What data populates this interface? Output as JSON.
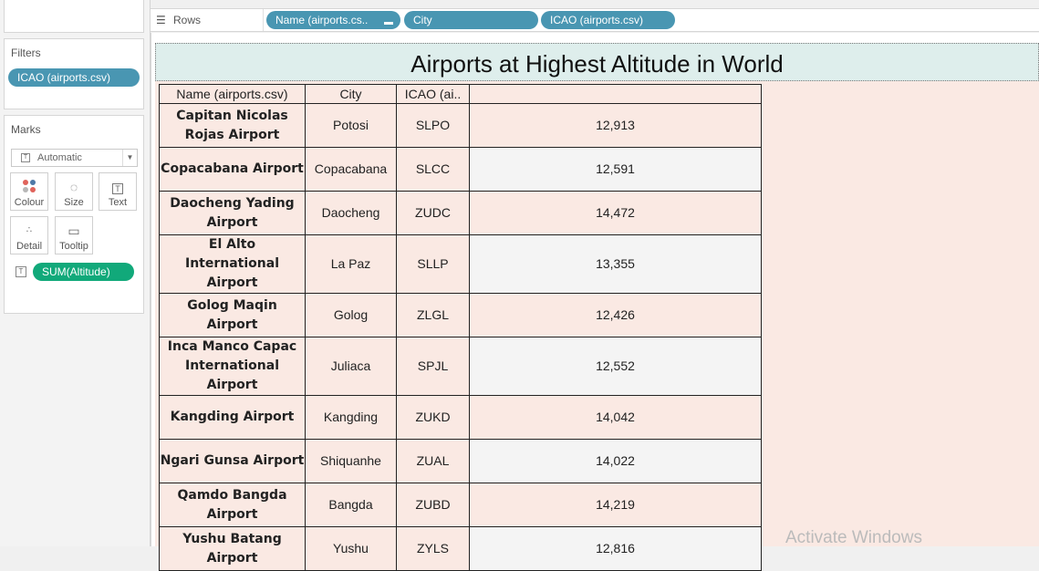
{
  "shelf": {
    "rows_label": "Rows",
    "pills": [
      "Name (airports.cs..",
      "City",
      "ICAO (airports.csv)"
    ]
  },
  "filters": {
    "title": "Filters",
    "pill": "ICAO (airports.csv)"
  },
  "marks": {
    "title": "Marks",
    "mark_type": "Automatic",
    "buttons": [
      "Colour",
      "Size",
      "Text",
      "Detail",
      "Tooltip"
    ],
    "measure_pill": "SUM(Altitude)"
  },
  "view": {
    "title": "Airports at Highest Altitude in World",
    "columns": [
      "Name (airports.csv)",
      "City",
      "ICAO (ai..",
      ""
    ],
    "rows": [
      {
        "name": "Capitan Nicolas Rojas Airport",
        "city": "Potosi",
        "icao": "SLPO",
        "altitude": "12,913"
      },
      {
        "name": "Copacabana Airport",
        "city": "Copacabana",
        "icao": "SLCC",
        "altitude": "12,591"
      },
      {
        "name": "Daocheng Yading Airport",
        "city": "Daocheng",
        "icao": "ZUDC",
        "altitude": "14,472"
      },
      {
        "name": "El Alto International Airport",
        "city": "La Paz",
        "icao": "SLLP",
        "altitude": "13,355"
      },
      {
        "name": "Golog Maqin Airport",
        "city": "Golog",
        "icao": "ZLGL",
        "altitude": "12,426"
      },
      {
        "name": "Inca Manco Capac International Airport",
        "city": "Juliaca",
        "icao": "SPJL",
        "altitude": "12,552"
      },
      {
        "name": "Kangding Airport",
        "city": "Kangding",
        "icao": "ZUKD",
        "altitude": "14,042"
      },
      {
        "name": "Ngari Gunsa Airport",
        "city": "Shiquanhe",
        "icao": "ZUAL",
        "altitude": "14,022"
      },
      {
        "name": "Qamdo Bangda Airport",
        "city": "Bangda",
        "icao": "ZUBD",
        "altitude": "14,219"
      },
      {
        "name": "Yushu Batang Airport",
        "city": "Yushu",
        "icao": "ZYLS",
        "altitude": "12,816"
      }
    ]
  },
  "watermark": "Activate Windows",
  "colors": {
    "pill_blue": "#4996b2",
    "pill_green": "#11a97a",
    "title_bg": "#deeeec",
    "cell_bg": "#fae9e3"
  }
}
